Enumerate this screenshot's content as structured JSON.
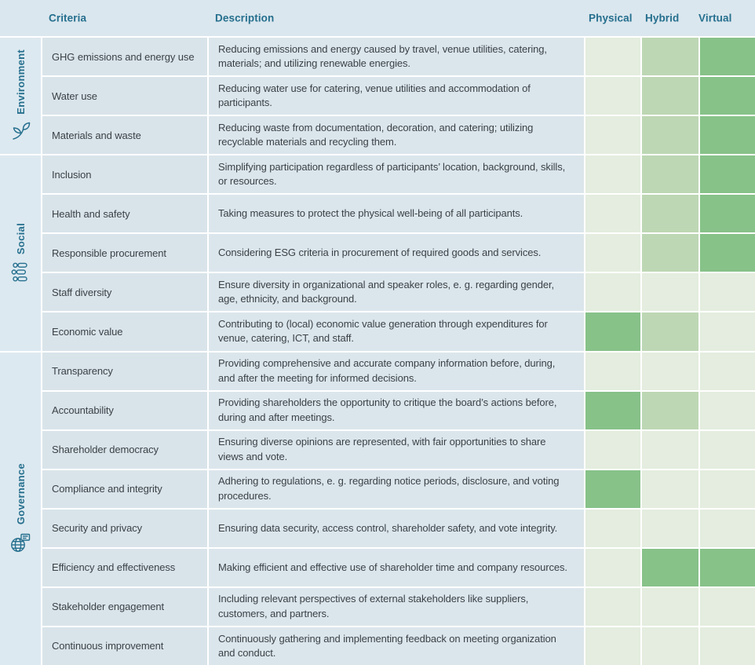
{
  "table": {
    "headers": {
      "criteria": "Criteria",
      "description": "Description",
      "physical": "Physical",
      "hybrid": "Hybrid",
      "virtual": "Virtual"
    },
    "sections": [
      {
        "name": "Environment",
        "icon": "leaf-icon",
        "rows": [
          {
            "criteria": "GHG emissions and energy use",
            "description": "Reducing emissions and energy caused by travel, venue utilities, catering, materials; and utilizing renewable energies.",
            "physical": "low",
            "hybrid": "medium",
            "virtual": "high"
          },
          {
            "criteria": "Water use",
            "description": "Reducing water use for catering, venue utilities and accommodation of participants.",
            "physical": "low",
            "hybrid": "medium",
            "virtual": "high"
          },
          {
            "criteria": "Materials and waste",
            "description": "Reducing waste from documentation, decoration, and catering; utilizing recyclable materials and recycling them.",
            "physical": "low",
            "hybrid": "medium",
            "virtual": "high"
          }
        ]
      },
      {
        "name": "Social",
        "icon": "people-icon",
        "rows": [
          {
            "criteria": "Inclusion",
            "description": "Simplifying participation regardless of participants’ location, background, skills, or resources.",
            "physical": "low",
            "hybrid": "medium",
            "virtual": "high"
          },
          {
            "criteria": "Health and safety",
            "description": "Taking measures to protect the physical well-being of all participants.",
            "physical": "low",
            "hybrid": "medium",
            "virtual": "high"
          },
          {
            "criteria": "Responsible procurement",
            "description": "Considering ESG criteria in procurement of required goods and services.",
            "physical": "low",
            "hybrid": "medium",
            "virtual": "high"
          },
          {
            "criteria": "Staff diversity",
            "description": "Ensure diversity in organizational and speaker roles, e. g. regarding gender, age, ethnicity, and background.",
            "physical": "low",
            "hybrid": "low",
            "virtual": "low"
          },
          {
            "criteria": "Economic value",
            "description": "Contributing to (local) economic value generation through expenditures for venue, catering, ICT, and staff.",
            "physical": "high",
            "hybrid": "medium",
            "virtual": "low"
          }
        ]
      },
      {
        "name": "Governance",
        "icon": "globe-icon",
        "rows": [
          {
            "criteria": "Transparency",
            "description": "Providing comprehensive and accurate company information before, during, and after the meeting for informed decisions.",
            "physical": "low",
            "hybrid": "low",
            "virtual": "low"
          },
          {
            "criteria": "Accountability",
            "description": "Providing shareholders the opportunity to critique the board’s actions before, during and after meetings.",
            "physical": "high",
            "hybrid": "medium",
            "virtual": "low"
          },
          {
            "criteria": "Shareholder democracy",
            "description": "Ensuring diverse opinions are represented, with fair opportunities to share views and vote.",
            "physical": "low",
            "hybrid": "low",
            "virtual": "low"
          },
          {
            "criteria": "Compliance and integrity",
            "description": "Adhering to regulations, e. g. regarding notice periods, disclosure, and voting procedures.",
            "physical": "high",
            "hybrid": "low",
            "virtual": "low"
          },
          {
            "criteria": "Security and privacy",
            "description": "Ensuring data security, access control, shareholder safety, and vote integrity.",
            "physical": "low",
            "hybrid": "low",
            "virtual": "low"
          },
          {
            "criteria": "Efficiency and effectiveness",
            "description": "Making efficient and effective use of shareholder time and company resources.",
            "physical": "low",
            "hybrid": "high",
            "virtual": "high"
          },
          {
            "criteria": "Stakeholder engagement",
            "description": "Including relevant perspectives of external stakeholders like suppliers, customers, and partners.",
            "physical": "low",
            "hybrid": "low",
            "virtual": "low"
          },
          {
            "criteria": "Continuous improvement",
            "description": "Continuously gathering and implementing feedback on meeting organization and conduct.",
            "physical": "low",
            "hybrid": "low",
            "virtual": "low"
          }
        ]
      }
    ]
  },
  "colors": {
    "header_bg": "#dbe7ee",
    "sidebar_bg": "#dde9f0",
    "criteria_bg": "#d9e4ea",
    "description_bg": "#dbe6ec",
    "teal": "#256f8e",
    "text": "#3b4247",
    "rating_low": "#e4eddf",
    "rating_medium": "#bdd7b4",
    "rating_high": "#87c289"
  }
}
